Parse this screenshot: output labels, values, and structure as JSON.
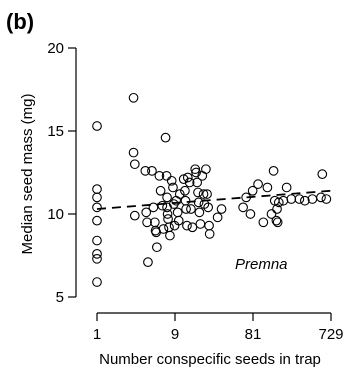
{
  "chart_data": {
    "type": "scatter",
    "panel_label": "(b)",
    "xlabel": "Number conspecific seeds in trap",
    "ylabel": "Median seed mass (mg)",
    "x_scale": "log3",
    "xlim": [
      1,
      729
    ],
    "ylim": [
      5,
      20
    ],
    "x_ticks": [
      1,
      9,
      81,
      729
    ],
    "x_tick_labels": [
      "1",
      "9",
      "81",
      "729"
    ],
    "y_ticks": [
      5,
      10,
      15,
      20
    ],
    "y_tick_labels": [
      "5",
      "10",
      "15",
      "20"
    ],
    "annotation": "Premna",
    "trend": {
      "style": "dashed",
      "x": [
        1,
        729
      ],
      "y": [
        10.3,
        11.4
      ]
    },
    "points": [
      {
        "x": 1,
        "y": 15.3
      },
      {
        "x": 1,
        "y": 11.5
      },
      {
        "x": 1,
        "y": 11.0
      },
      {
        "x": 1,
        "y": 10.4
      },
      {
        "x": 1,
        "y": 9.6
      },
      {
        "x": 1,
        "y": 8.4
      },
      {
        "x": 1,
        "y": 7.6
      },
      {
        "x": 1,
        "y": 7.3
      },
      {
        "x": 1,
        "y": 5.9
      },
      {
        "x": 2.8,
        "y": 17.0
      },
      {
        "x": 2.8,
        "y": 13.7
      },
      {
        "x": 2.9,
        "y": 13.0
      },
      {
        "x": 2.9,
        "y": 9.9
      },
      {
        "x": 3.9,
        "y": 12.6
      },
      {
        "x": 4.0,
        "y": 10.1
      },
      {
        "x": 4.1,
        "y": 9.5
      },
      {
        "x": 4.2,
        "y": 7.1
      },
      {
        "x": 4.7,
        "y": 12.6
      },
      {
        "x": 4.9,
        "y": 10.4
      },
      {
        "x": 5.1,
        "y": 9.5
      },
      {
        "x": 5.2,
        "y": 9.0
      },
      {
        "x": 5.3,
        "y": 8.9
      },
      {
        "x": 5.4,
        "y": 8.0
      },
      {
        "x": 5.8,
        "y": 12.3
      },
      {
        "x": 6.0,
        "y": 11.4
      },
      {
        "x": 6.3,
        "y": 10.5
      },
      {
        "x": 6.5,
        "y": 9.1
      },
      {
        "x": 6.9,
        "y": 14.6
      },
      {
        "x": 7.1,
        "y": 12.3
      },
      {
        "x": 7.2,
        "y": 11.0
      },
      {
        "x": 7.2,
        "y": 10.4
      },
      {
        "x": 7.3,
        "y": 10.0
      },
      {
        "x": 7.4,
        "y": 9.7
      },
      {
        "x": 7.6,
        "y": 9.2
      },
      {
        "x": 7.8,
        "y": 8.7
      },
      {
        "x": 8.2,
        "y": 12.0
      },
      {
        "x": 8.5,
        "y": 11.6
      },
      {
        "x": 8.7,
        "y": 10.6
      },
      {
        "x": 8.9,
        "y": 9.3
      },
      {
        "x": 9.3,
        "y": 10.8
      },
      {
        "x": 9.7,
        "y": 10.1
      },
      {
        "x": 10.0,
        "y": 9.6
      },
      {
        "x": 10.3,
        "y": 11.2
      },
      {
        "x": 11.5,
        "y": 12.1
      },
      {
        "x": 11.9,
        "y": 11.4
      },
      {
        "x": 12.1,
        "y": 10.8
      },
      {
        "x": 12.3,
        "y": 10.3
      },
      {
        "x": 12.6,
        "y": 9.3
      },
      {
        "x": 12.9,
        "y": 12.2
      },
      {
        "x": 13.6,
        "y": 11.9
      },
      {
        "x": 14.1,
        "y": 10.3
      },
      {
        "x": 14.7,
        "y": 9.2
      },
      {
        "x": 15.9,
        "y": 12.7
      },
      {
        "x": 16.3,
        "y": 12.5
      },
      {
        "x": 16.8,
        "y": 11.9
      },
      {
        "x": 17.2,
        "y": 11.3
      },
      {
        "x": 17.5,
        "y": 10.7
      },
      {
        "x": 17.9,
        "y": 10.1
      },
      {
        "x": 18.4,
        "y": 9.4
      },
      {
        "x": 19.4,
        "y": 12.3
      },
      {
        "x": 20.1,
        "y": 11.2
      },
      {
        "x": 20.6,
        "y": 10.6
      },
      {
        "x": 21.5,
        "y": 12.7
      },
      {
        "x": 22.2,
        "y": 11.2
      },
      {
        "x": 22.9,
        "y": 10.4
      },
      {
        "x": 23.5,
        "y": 9.3
      },
      {
        "x": 23.9,
        "y": 8.8
      },
      {
        "x": 29.9,
        "y": 9.8
      },
      {
        "x": 33.4,
        "y": 10.3
      },
      {
        "x": 61.3,
        "y": 10.4
      },
      {
        "x": 66.8,
        "y": 11.0
      },
      {
        "x": 75.3,
        "y": 10.0
      },
      {
        "x": 80.2,
        "y": 11.4
      },
      {
        "x": 93.4,
        "y": 11.8
      },
      {
        "x": 108.4,
        "y": 9.5
      },
      {
        "x": 121.5,
        "y": 11.6
      },
      {
        "x": 136.3,
        "y": 10.0
      },
      {
        "x": 144.6,
        "y": 12.6
      },
      {
        "x": 149.5,
        "y": 10.8
      },
      {
        "x": 156.6,
        "y": 9.6
      },
      {
        "x": 159.4,
        "y": 10.3
      },
      {
        "x": 162.3,
        "y": 9.5
      },
      {
        "x": 167.6,
        "y": 10.7
      },
      {
        "x": 190.5,
        "y": 10.8
      },
      {
        "x": 209.0,
        "y": 11.6
      },
      {
        "x": 238.2,
        "y": 10.9
      },
      {
        "x": 299.2,
        "y": 10.9
      },
      {
        "x": 348.9,
        "y": 10.8
      },
      {
        "x": 431.7,
        "y": 10.9
      },
      {
        "x": 550.0,
        "y": 11.0
      },
      {
        "x": 570.4,
        "y": 12.4
      },
      {
        "x": 639.9,
        "y": 10.9
      }
    ]
  }
}
